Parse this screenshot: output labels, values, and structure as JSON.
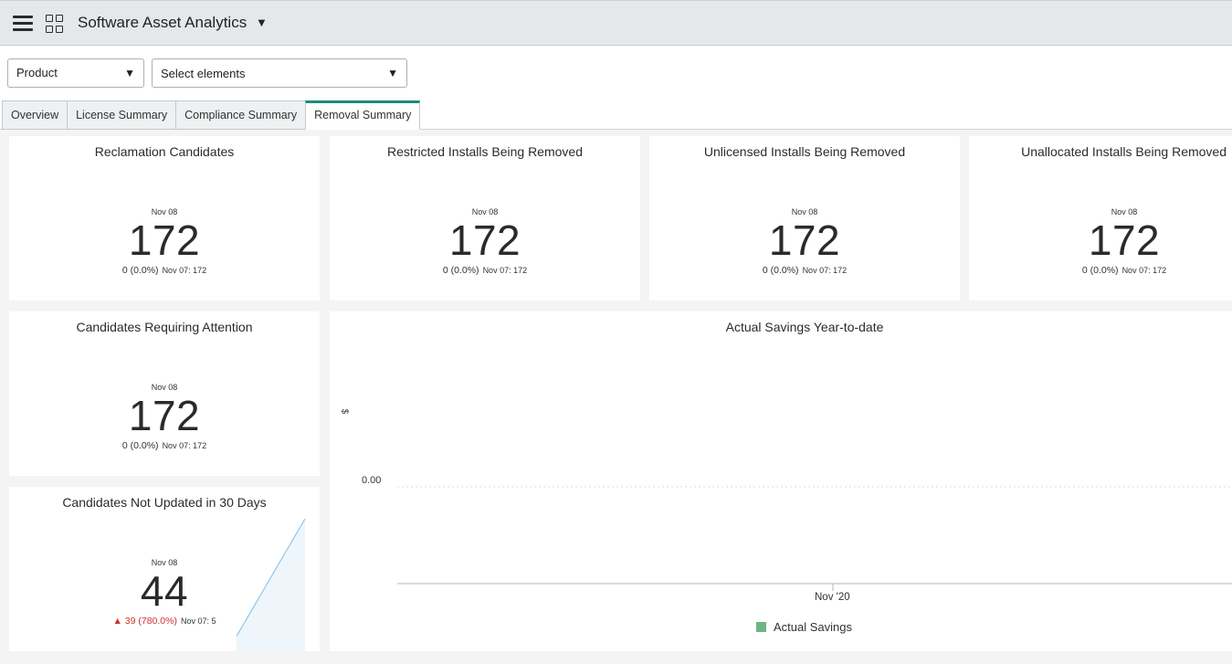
{
  "app": {
    "title": "Software Asset Analytics"
  },
  "filters": {
    "product": {
      "label": "Product"
    },
    "elements": {
      "label": "Select elements"
    }
  },
  "tabs": [
    {
      "label": "Overview",
      "active": false
    },
    {
      "label": "License Summary",
      "active": false
    },
    {
      "label": "Compliance Summary",
      "active": false
    },
    {
      "label": "Removal Summary",
      "active": true
    }
  ],
  "cards": {
    "reclamation": {
      "title": "Reclamation Candidates",
      "date": "Nov 08",
      "value": "172",
      "change": "0 (0.0%)",
      "prev": "Nov 07: 172"
    },
    "restricted": {
      "title": "Restricted Installs Being Removed",
      "date": "Nov 08",
      "value": "172",
      "change": "0 (0.0%)",
      "prev": "Nov 07: 172"
    },
    "unlicensed": {
      "title": "Unlicensed Installs Being Removed",
      "date": "Nov 08",
      "value": "172",
      "change": "0 (0.0%)",
      "prev": "Nov 07: 172"
    },
    "unallocated": {
      "title": "Unallocated Installs Being Removed",
      "date": "Nov 08",
      "value": "172",
      "change": "0 (0.0%)",
      "prev": "Nov 07: 172"
    },
    "attention": {
      "title": "Candidates Requiring Attention",
      "date": "Nov 08",
      "value": "172",
      "change": "0 (0.0%)",
      "prev": "Nov 07: 172"
    },
    "not_updated": {
      "title": "Candidates Not Updated in 30 Days",
      "date": "Nov 08",
      "value": "44",
      "change": "▲ 39 (780.0%)",
      "prev": "Nov 07: 5",
      "trend_color": "#d0312d",
      "sparkline": [
        5,
        44
      ]
    }
  },
  "chart_data": {
    "type": "bar",
    "title": "Actual Savings Year-to-date",
    "ylabel": "$",
    "yticks": [
      "0.00"
    ],
    "categories": [
      "Nov '20"
    ],
    "series": [
      {
        "name": "Actual Savings",
        "values": [
          0
        ],
        "color": "#6eb486"
      }
    ],
    "legend": "bottom"
  },
  "colors": {
    "accent": "#1d8a7a",
    "header_bg": "#e4e8ea",
    "negative": "#d0312d",
    "sparkline": "#8ec7e8"
  }
}
